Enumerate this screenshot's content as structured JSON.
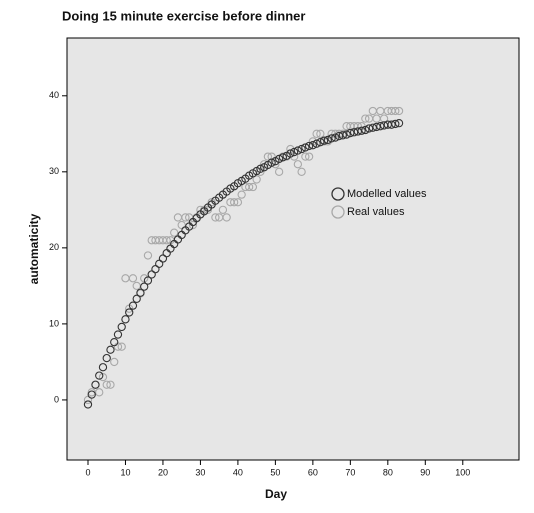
{
  "chart_data": {
    "type": "scatter",
    "title": "Doing 15 minute exercise before dinner",
    "x_label": "Day",
    "y_label": "automaticity",
    "x": [
      0,
      1,
      2,
      3,
      4,
      5,
      6,
      7,
      8,
      9,
      10,
      11,
      12,
      13,
      14,
      15,
      16,
      17,
      18,
      19,
      20,
      21,
      22,
      23,
      24,
      25,
      26,
      27,
      28,
      29,
      30,
      31,
      32,
      33,
      34,
      35,
      36,
      37,
      38,
      39,
      40,
      41,
      42,
      43,
      44,
      45,
      46,
      47,
      48,
      49,
      50,
      51,
      52,
      53,
      54,
      55,
      56,
      57,
      58,
      59,
      60,
      61,
      62,
      63,
      64,
      65,
      66,
      67,
      68,
      69,
      70,
      71,
      72,
      73,
      74,
      75,
      76,
      77,
      78,
      79,
      80,
      81,
      82,
      83
    ],
    "series": [
      {
        "name": "Modelled values",
        "color": "#333333",
        "values": [
          -0.6,
          0.7,
          2.0,
          3.2,
          4.3,
          5.5,
          6.6,
          7.6,
          8.6,
          9.6,
          10.6,
          11.5,
          12.4,
          13.3,
          14.1,
          14.9,
          15.7,
          16.5,
          17.2,
          17.9,
          18.6,
          19.3,
          19.9,
          20.5,
          21.1,
          21.7,
          22.3,
          22.8,
          23.4,
          23.9,
          24.4,
          24.8,
          25.3,
          25.7,
          26.2,
          26.6,
          27.0,
          27.4,
          27.8,
          28.1,
          28.5,
          28.8,
          29.1,
          29.5,
          29.8,
          30.1,
          30.4,
          30.6,
          30.9,
          31.2,
          31.4,
          31.7,
          31.9,
          32.1,
          32.4,
          32.6,
          32.8,
          33.0,
          33.2,
          33.4,
          33.5,
          33.7,
          33.9,
          34.1,
          34.2,
          34.4,
          34.5,
          34.7,
          34.8,
          34.9,
          35.1,
          35.2,
          35.3,
          35.4,
          35.5,
          35.7,
          35.8,
          35.9,
          36.0,
          36.1,
          36.2,
          36.2,
          36.3,
          36.4
        ]
      },
      {
        "name": "Real values",
        "color": "#a8a8a8",
        "values": [
          0,
          1,
          2,
          1,
          3,
          2,
          2,
          5,
          7,
          7,
          16,
          12,
          16,
          15,
          14,
          16,
          19,
          21,
          21,
          21,
          21,
          21,
          21,
          22,
          24,
          23,
          24,
          24,
          23,
          24,
          25,
          25,
          25,
          26,
          24,
          24,
          25,
          24,
          26,
          26,
          26,
          27,
          28,
          28,
          28,
          29,
          30,
          31,
          32,
          32,
          31,
          30,
          32,
          32,
          33,
          32,
          31,
          30,
          32,
          32,
          34,
          35,
          35,
          34,
          34,
          35,
          35,
          35,
          35,
          36,
          36,
          36,
          36,
          36,
          37,
          37,
          38,
          37,
          38,
          37,
          38,
          38,
          38,
          38
        ]
      }
    ],
    "xlim": [
      -5.6,
      115
    ],
    "ylim": [
      -7.9,
      47.6
    ],
    "xticks": [
      0,
      10,
      20,
      30,
      40,
      50,
      60,
      70,
      80,
      90,
      100
    ],
    "yticks": [
      0,
      10,
      20,
      30,
      40
    ],
    "legend_position": "center-right",
    "background": "#e6e6e6"
  }
}
